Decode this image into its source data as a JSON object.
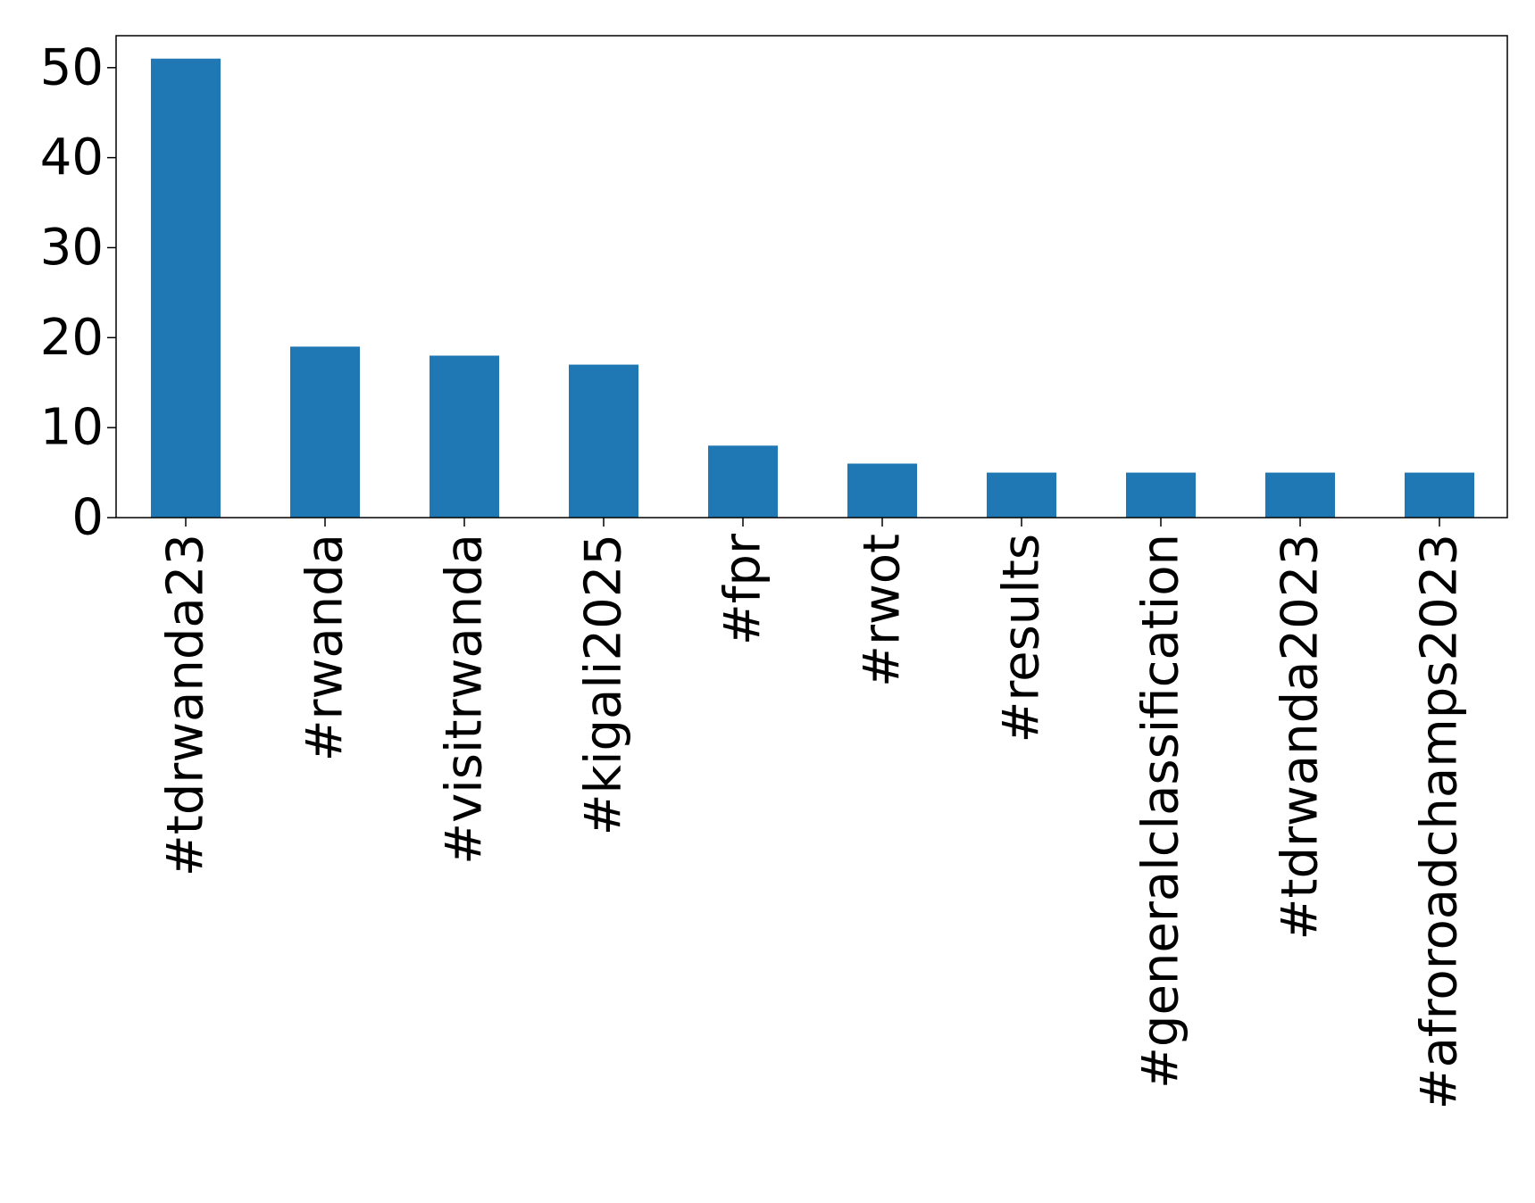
{
  "chart_data": {
    "type": "bar",
    "title": "",
    "xlabel": "",
    "ylabel": "",
    "categories": [
      "#tdrwanda23",
      "#rwanda",
      "#visitrwanda",
      "#kigali2025",
      "#fpr",
      "#rwot",
      "#results",
      "#generalclassification",
      "#tdrwanda2023",
      "#afroroadchamps2023"
    ],
    "values": [
      51,
      19,
      18,
      17,
      8,
      6,
      5,
      5,
      5,
      5
    ],
    "ylim": [
      0,
      53.55
    ],
    "yticks": [
      0,
      10,
      20,
      30,
      40,
      50
    ],
    "grid": false,
    "legend": "none",
    "bar_color": "#1f77b4"
  }
}
